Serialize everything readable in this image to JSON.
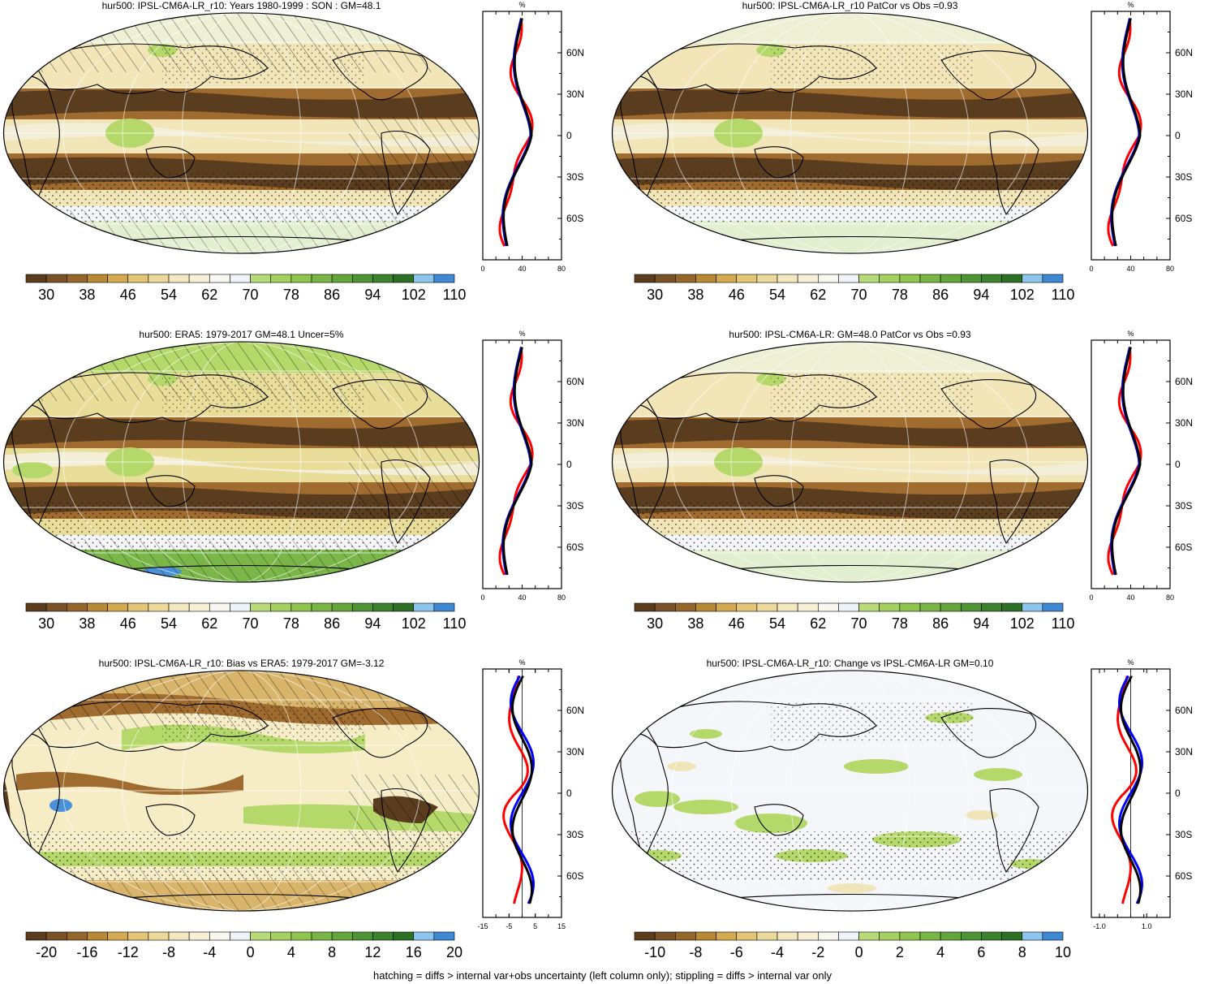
{
  "colors": {
    "brown_dark": "#5a3d1f",
    "brown_mid": "#a06b2e",
    "tan": "#d8b56a",
    "cream": "#f2e6b8",
    "white": "#f7f8fb",
    "green_light": "#b5d86a",
    "green_mid": "#7ab648",
    "green_dark": "#3f8a3a",
    "blue": "#4a90d9",
    "line_black": "#000000",
    "line_red": "#ff0000",
    "line_blue": "#0000ff"
  },
  "scale_abs": {
    "labels": [
      "30",
      "38",
      "46",
      "54",
      "62",
      "70",
      "78",
      "86",
      "94",
      "102",
      "110"
    ],
    "colors": [
      "#5b3c1c",
      "#7a5227",
      "#946629",
      "#b98a35",
      "#d3aa4e",
      "#e2c576",
      "#ecd99c",
      "#f3e8bf",
      "#f7f0d6",
      "#f9f8f0",
      "#eef3f8",
      "#b8db7a",
      "#a4d162",
      "#8fc44f",
      "#79b545",
      "#64a53c",
      "#4f9434",
      "#3c822c",
      "#2c6f25",
      "#8dc6ec",
      "#3f88d4"
    ]
  },
  "scale_bias": {
    "labels": [
      "-20",
      "-16",
      "-12",
      "-8",
      "-4",
      "0",
      "4",
      "8",
      "12",
      "16",
      "20"
    ],
    "colors": [
      "#5b3c1c",
      "#7a5227",
      "#946629",
      "#b98a35",
      "#d3aa4e",
      "#e2c576",
      "#ecd99c",
      "#f3e8bf",
      "#f7f0d6",
      "#f9f8f0",
      "#eef3f8",
      "#b8db7a",
      "#a4d162",
      "#8fc44f",
      "#79b545",
      "#64a53c",
      "#4f9434",
      "#3c822c",
      "#2c6f25",
      "#8dc6ec",
      "#3f88d4"
    ]
  },
  "scale_change": {
    "labels": [
      "-10",
      "-8",
      "-6",
      "-4",
      "-2",
      "0",
      "2",
      "4",
      "6",
      "8",
      "10"
    ],
    "colors": [
      "#5b3c1c",
      "#7a5227",
      "#946629",
      "#b98a35",
      "#d3aa4e",
      "#e2c576",
      "#ecd99c",
      "#f3e8bf",
      "#f7f0d6",
      "#f9f8f0",
      "#eef3f8",
      "#b8db7a",
      "#a4d162",
      "#8fc44f",
      "#79b545",
      "#64a53c",
      "#4f9434",
      "#3c822c",
      "#2c6f25",
      "#8dc6ec",
      "#3f88d4"
    ]
  },
  "lat_labels": [
    "60N",
    "30N",
    "0",
    "30S",
    "60S"
  ],
  "profile_unit": "%",
  "panels": [
    {
      "id": "p1",
      "title": "hur500: IPSL-CM6A-LR_r10: Years 1980-1999 : SON : GM=48.1",
      "scale": "scale_abs",
      "xticks": [
        "0",
        "40",
        "80"
      ],
      "hatch": true,
      "kind": "abs"
    },
    {
      "id": "p2",
      "title": "hur500: IPSL-CM6A-LR_r10 PatCor vs Obs =0.93",
      "scale": "scale_abs",
      "xticks": [
        "0",
        "40",
        "80"
      ],
      "hatch": false,
      "kind": "abs"
    },
    {
      "id": "p3",
      "title": "hur500: ERA5: 1979-2017 GM=48.1 Uncer=5%",
      "scale": "scale_abs",
      "xticks": [
        "0",
        "40",
        "80"
      ],
      "hatch": true,
      "kind": "obs"
    },
    {
      "id": "p4",
      "title": "hur500: IPSL-CM6A-LR: GM=48.0 PatCor vs Obs =0.93",
      "scale": "scale_abs",
      "xticks": [
        "0",
        "40",
        "80"
      ],
      "hatch": false,
      "kind": "abs"
    },
    {
      "id": "p5",
      "title": "hur500: IPSL-CM6A-LR_r10: Bias vs ERA5: 1979-2017  GM=-3.12",
      "scale": "scale_bias",
      "xticks": [
        "-15",
        "-5",
        "5",
        "15"
      ],
      "hatch": true,
      "kind": "bias"
    },
    {
      "id": "p6",
      "title": "hur500: IPSL-CM6A-LR_r10: Change vs IPSL-CM6A-LR GM=0.10",
      "scale": "scale_change",
      "xticks": [
        "-1.0",
        "1.0"
      ],
      "hatch": false,
      "kind": "change"
    }
  ],
  "footer": "hatching = diffs > internal var+obs uncertainty (left column only); stippling = diffs > internal var only"
}
